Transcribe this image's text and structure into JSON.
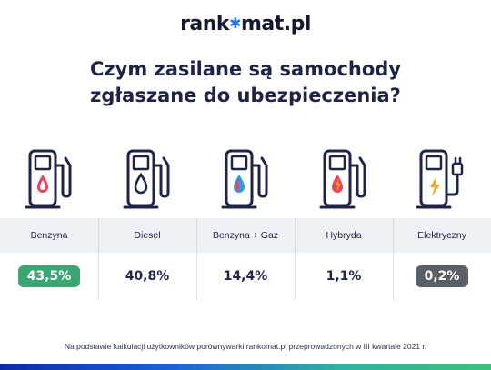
{
  "brand": {
    "pre": "rank",
    "post": "mat.pl",
    "star": "✱"
  },
  "title": {
    "line1": "Czym zasilane są samochody",
    "line2": "zgłaszane do ubezpieczenia?"
  },
  "colors": {
    "accent_blue": "#1e74ff",
    "pump_outline": "#1f2446",
    "drop_red": "#e8455b",
    "drop_blue": "#2f9be8",
    "bolt_orange": "#f5a623",
    "highlight_green": "#3aa673",
    "highlight_gray": "#5a5f66"
  },
  "fuel_icons": [
    "fuel-pump-red-drop-icon",
    "fuel-pump-outline-drop-icon",
    "fuel-pump-blue-drop-icon",
    "fuel-pump-hybrid-icon",
    "ev-charger-bolt-icon"
  ],
  "chart_data": {
    "type": "table",
    "categories": [
      "Benzyna",
      "Diesel",
      "Benzyna + Gaz",
      "Hybryda",
      "Elektryczny"
    ],
    "values": [
      43.5,
      40.8,
      14.4,
      1.1,
      0.2
    ],
    "value_labels": [
      "43,5%",
      "40,8%",
      "14,4%",
      "1,1%",
      "0,2%"
    ],
    "unit": "%",
    "highlight": {
      "max": "Benzyna",
      "min": "Elektryczny"
    }
  },
  "footnote": "Na podstawie kalkulacji użytkowników porównywarki rankomat.pl przeprowadzonych w III kwartale 2021 r."
}
